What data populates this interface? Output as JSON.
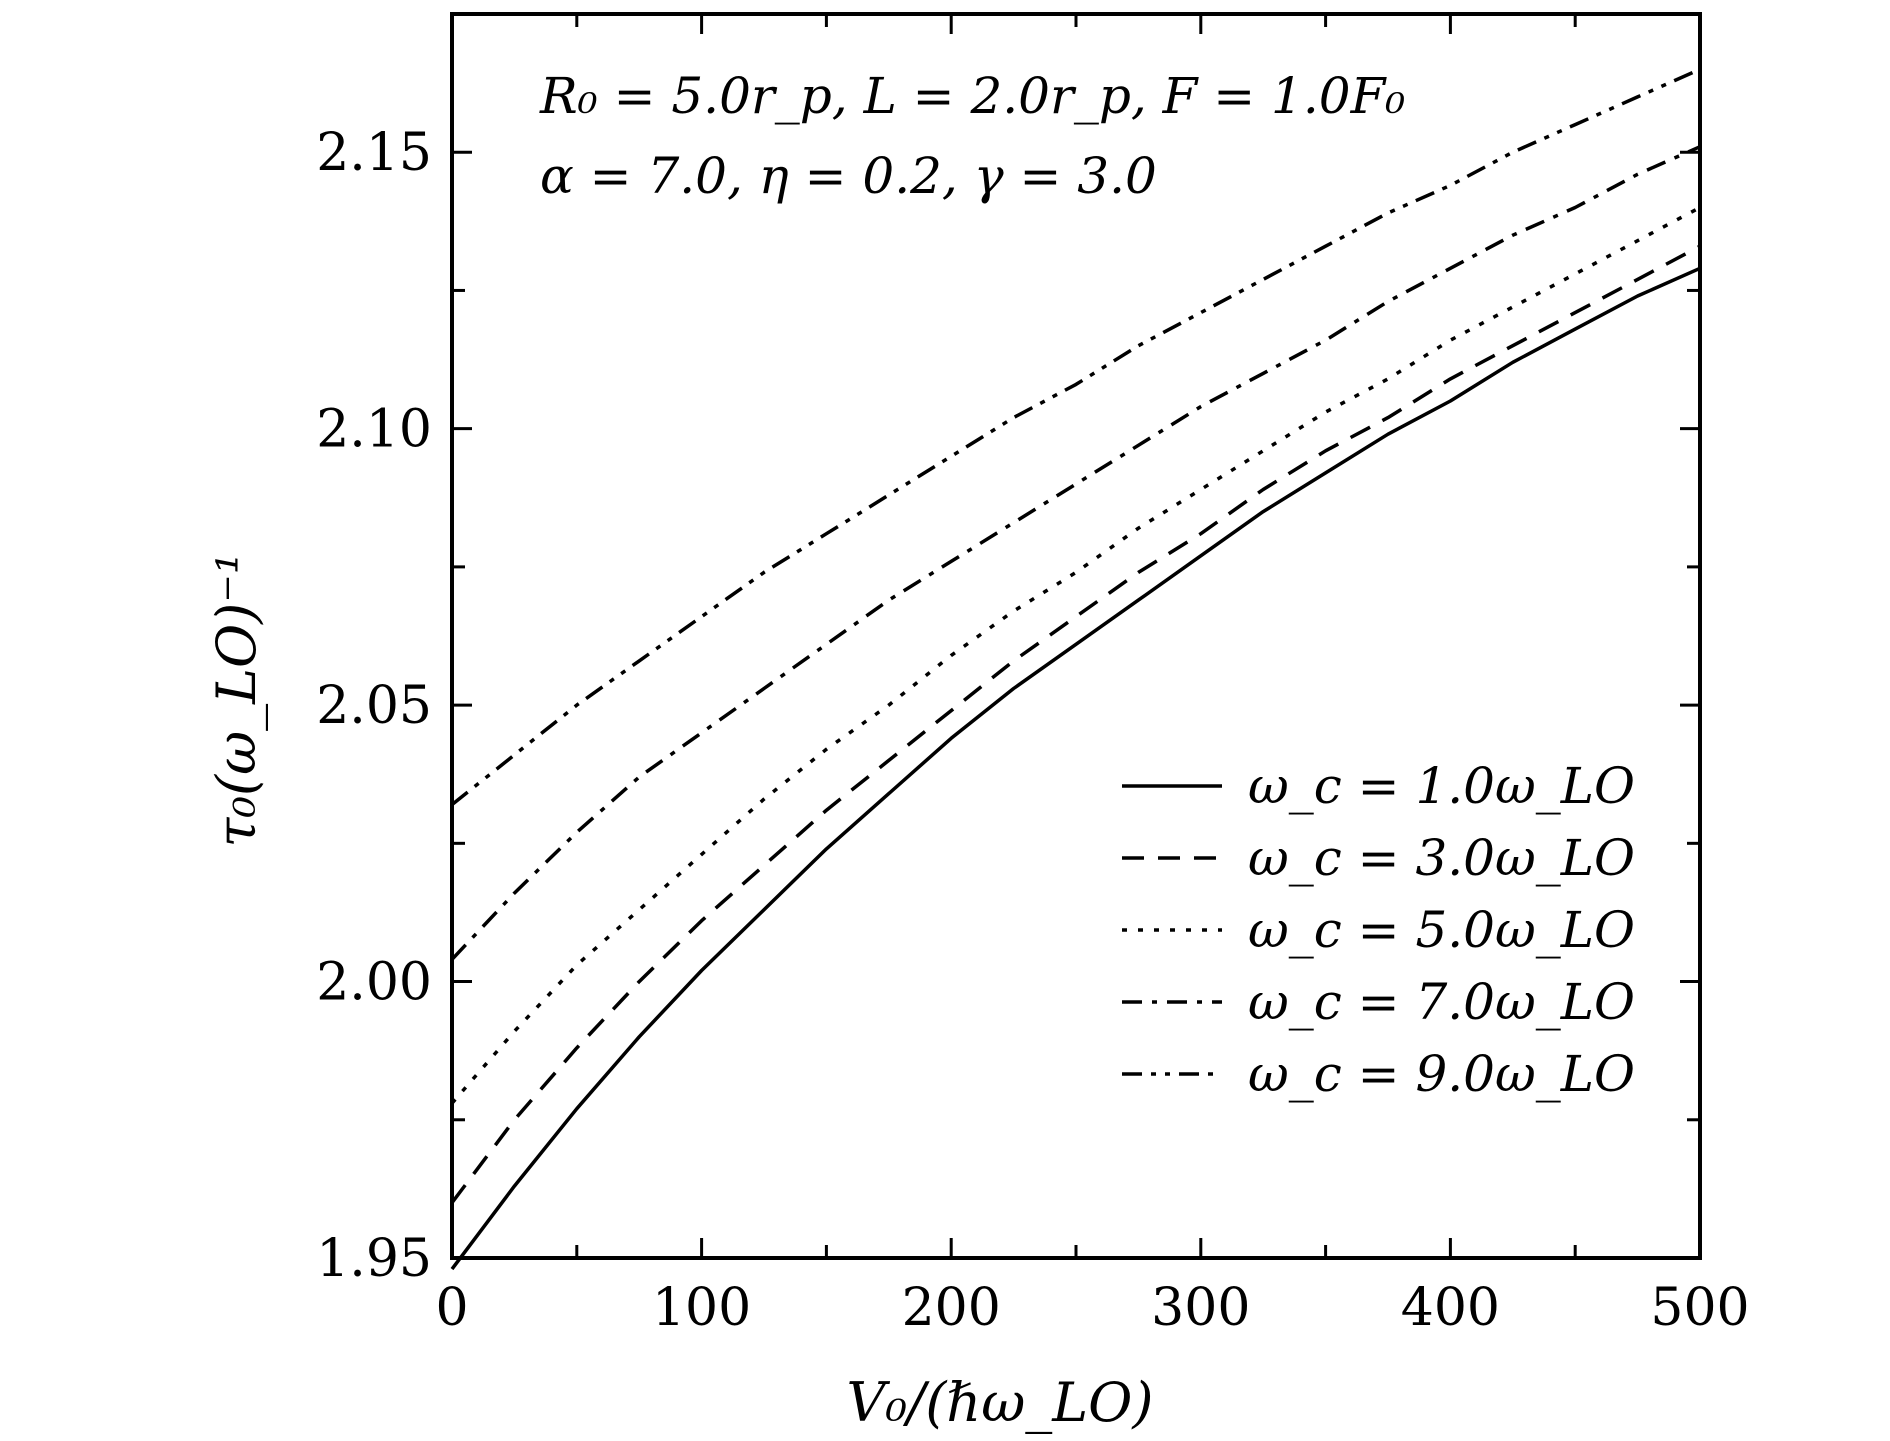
{
  "chart_data": {
    "type": "line",
    "title": "",
    "xlabel": "V₀/(ℏω_LO)",
    "ylabel": "τ₀(ω_LO)⁻¹",
    "xlim": [
      0,
      500
    ],
    "ylim": [
      1.95,
      2.175
    ],
    "x_ticks": [
      "0",
      "100",
      "200",
      "300",
      "400",
      "500"
    ],
    "y_ticks": [
      "1.95",
      "2.00",
      "2.05",
      "2.10",
      "2.15"
    ],
    "annotations": [
      "R₀ = 5.0r_p, L = 2.0r_p, F = 1.0F₀",
      "α = 7.0, η = 0.2, γ = 3.0"
    ],
    "legend_position": "bottom-right",
    "grid": false,
    "x": [
      0,
      25,
      50,
      75,
      100,
      125,
      150,
      175,
      200,
      225,
      250,
      275,
      300,
      325,
      350,
      375,
      400,
      425,
      450,
      475,
      500
    ],
    "series": [
      {
        "name": "ω_c = 1.0ω_LO",
        "style": "solid",
        "values": [
          1.948,
          1.963,
          1.977,
          1.99,
          2.002,
          2.013,
          2.024,
          2.034,
          2.044,
          2.053,
          2.061,
          2.069,
          2.077,
          2.085,
          2.092,
          2.099,
          2.105,
          2.112,
          2.118,
          2.124,
          2.129
        ]
      },
      {
        "name": "ω_c = 3.0ω_LO",
        "style": "dashed",
        "values": [
          1.96,
          1.975,
          1.988,
          2.0,
          2.011,
          2.021,
          2.031,
          2.04,
          2.049,
          2.058,
          2.066,
          2.074,
          2.081,
          2.089,
          2.096,
          2.102,
          2.109,
          2.115,
          2.121,
          2.127,
          2.133
        ]
      },
      {
        "name": "ω_c = 5.0ω_LO",
        "style": "dotted",
        "values": [
          1.978,
          1.991,
          2.003,
          2.013,
          2.023,
          2.033,
          2.042,
          2.05,
          2.059,
          2.067,
          2.074,
          2.082,
          2.089,
          2.096,
          2.103,
          2.109,
          2.116,
          2.122,
          2.128,
          2.134,
          2.14
        ]
      },
      {
        "name": "ω_c = 7.0ω_LO",
        "style": "dash-dot",
        "values": [
          2.004,
          2.016,
          2.027,
          2.037,
          2.045,
          2.053,
          2.061,
          2.069,
          2.076,
          2.083,
          2.09,
          2.097,
          2.104,
          2.11,
          2.116,
          2.123,
          2.129,
          2.135,
          2.14,
          2.146,
          2.151
        ]
      },
      {
        "name": "ω_c = 9.0ω_LO",
        "style": "dash-dot-dot",
        "values": [
          2.032,
          2.041,
          2.05,
          2.058,
          2.066,
          2.074,
          2.081,
          2.088,
          2.095,
          2.102,
          2.108,
          2.115,
          2.121,
          2.127,
          2.133,
          2.139,
          2.144,
          2.15,
          2.155,
          2.16,
          2.165
        ]
      }
    ]
  }
}
